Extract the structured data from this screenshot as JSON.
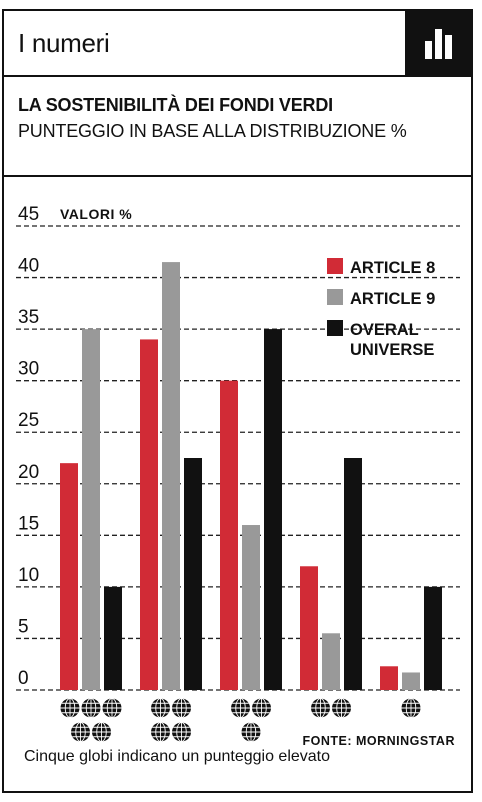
{
  "header": {
    "section_label": "I numeri",
    "icon": "bar-chart-icon"
  },
  "chart_data": {
    "type": "bar",
    "title": "LA SOSTENIBILITÀ DEI FONDI VERDI",
    "subtitle": "PUNTEGGIO IN BASE ALLA DISTRIBUZIONE %",
    "ylabel": "VALORI %",
    "ylim": [
      0,
      45
    ],
    "yticks": [
      "0",
      "5",
      "10",
      "15",
      "20",
      "25",
      "30",
      "35",
      "40",
      "45"
    ],
    "categories": [
      5,
      4,
      3,
      2,
      1
    ],
    "category_icon": "globe-icon",
    "series": [
      {
        "name": "ARTICLE 8",
        "color": "#d12b36",
        "values": [
          22,
          34,
          30,
          12,
          2.3
        ]
      },
      {
        "name": "ARTICLE 9",
        "color": "#999999",
        "values": [
          35,
          41.5,
          16,
          5.5,
          1.7
        ]
      },
      {
        "name": "OVERAL UNIVERSE",
        "color": "#111111",
        "values": [
          10,
          22.5,
          35,
          22.5,
          10
        ]
      }
    ],
    "grid": "dashed-horizontal",
    "legend": "top-right"
  },
  "source": "FONTE: MORNINGSTAR",
  "footnote": "Cinque globi indicano un punteggio elevato"
}
